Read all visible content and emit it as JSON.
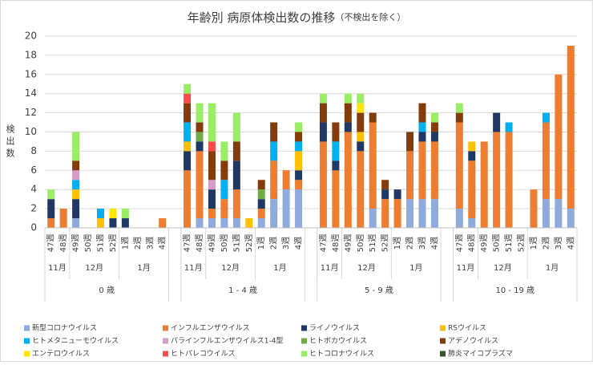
{
  "chart_data": {
    "type": "stacked_bar",
    "title": "年齢別 病原体検出数の推移",
    "subtitle": "（不検出を除く）",
    "y_label": "検出数",
    "categories": [
      "47週",
      "48週",
      "49週",
      "50週",
      "51週",
      "52週",
      "1週",
      "2週",
      "3週",
      "4週",
      null,
      "47週",
      "48週",
      "49週",
      "50週",
      "51週",
      "52週",
      "1週",
      "2週",
      "3週",
      "4週",
      null,
      "47週",
      "48週",
      "49週",
      "50週",
      "51週",
      "52週",
      "1週",
      "2週",
      "3週",
      "4週",
      null,
      "47週",
      "48週",
      "49週",
      "50週",
      "51週",
      "52週",
      "1週",
      "2週",
      "3週",
      "4週"
    ],
    "groups": [
      {
        "name": "0 歳",
        "months": [
          "11月",
          "12月",
          "1月"
        ]
      },
      {
        "name": "1 - 4 歳",
        "months": [
          "11月",
          "12月",
          "1月"
        ]
      },
      {
        "name": "5 - 9 歳",
        "months": [
          "11月",
          "12月",
          "1月"
        ]
      },
      {
        "name": "10 - 19 歳",
        "months": [
          "11月",
          "12月",
          "1月"
        ]
      }
    ],
    "ylim": [
      0,
      20
    ],
    "yticks": [
      0,
      2,
      4,
      6,
      8,
      10,
      12,
      14,
      16,
      18,
      20
    ],
    "grid": true,
    "series": [
      {
        "name": "新型コロナウイルス",
        "color": "#8faadc",
        "values": [
          0,
          0,
          1,
          0,
          0,
          0,
          0,
          0,
          0,
          0,
          null,
          0,
          1,
          1,
          1,
          1,
          0,
          1,
          3,
          4,
          4,
          null,
          0,
          0,
          0,
          0,
          2,
          0,
          0,
          3,
          3,
          3,
          null,
          2,
          1,
          0,
          0,
          0,
          0,
          0,
          3,
          3,
          2
        ]
      },
      {
        "name": "インフルエンザウイルス",
        "color": "#ed7d31",
        "values": [
          1,
          2,
          0,
          0,
          0,
          0,
          0,
          0,
          0,
          1,
          null,
          6,
          7,
          1,
          2,
          3,
          0,
          1,
          4,
          2,
          1,
          null,
          9,
          6,
          10,
          8,
          9,
          3,
          3,
          5,
          6,
          6,
          null,
          9,
          6,
          9,
          10,
          10,
          0,
          4,
          8,
          13,
          17
        ]
      },
      {
        "name": "ライノウイルス",
        "color": "#1f3864",
        "values": [
          2,
          0,
          2,
          0,
          0,
          1,
          1,
          0,
          0,
          0,
          null,
          2,
          1,
          2,
          0,
          3,
          0,
          1,
          0,
          0,
          1,
          null,
          2,
          1,
          1,
          1,
          0,
          1,
          1,
          0,
          1,
          1,
          null,
          0,
          1,
          0,
          2,
          0,
          0,
          0,
          0,
          0,
          0
        ]
      },
      {
        "name": "RSウイルス",
        "color": "#ffc000",
        "values": [
          0,
          0,
          1,
          0,
          1,
          0,
          0,
          0,
          0,
          0,
          null,
          1,
          0,
          0,
          0,
          0,
          1,
          0,
          0,
          0,
          2,
          null,
          0,
          0,
          0,
          1,
          0,
          0,
          0,
          0,
          0,
          0,
          null,
          0,
          1,
          0,
          0,
          0,
          0,
          0,
          0,
          0,
          0
        ]
      },
      {
        "name": "ヒトメタニューモウイルス",
        "color": "#00b0f0",
        "values": [
          0,
          0,
          1,
          0,
          1,
          0,
          0,
          0,
          0,
          0,
          null,
          2,
          0,
          0,
          2,
          0,
          0,
          0,
          2,
          0,
          1,
          null,
          0,
          2,
          0,
          0,
          0,
          0,
          0,
          0,
          1,
          0,
          null,
          0,
          0,
          0,
          0,
          1,
          0,
          0,
          1,
          0,
          0
        ]
      },
      {
        "name": "パラインフルエンザウイルス1-4型",
        "color": "#d59cc9",
        "values": [
          0,
          0,
          1,
          0,
          0,
          0,
          0,
          0,
          0,
          0,
          null,
          0,
          0,
          1,
          0,
          0,
          0,
          0,
          0,
          0,
          0,
          null,
          0,
          0,
          0,
          0,
          0,
          0,
          0,
          0,
          0,
          0,
          null,
          0,
          0,
          0,
          0,
          0,
          0,
          0,
          0,
          0,
          0
        ]
      },
      {
        "name": "ヒトボカウイルス",
        "color": "#70ad47",
        "values": [
          0,
          0,
          0,
          0,
          0,
          0,
          0,
          0,
          0,
          0,
          null,
          0,
          1,
          0,
          0,
          0,
          0,
          1,
          0,
          0,
          0,
          null,
          0,
          0,
          0,
          0,
          0,
          0,
          0,
          0,
          0,
          0,
          null,
          0,
          0,
          0,
          0,
          0,
          0,
          0,
          0,
          0,
          0
        ]
      },
      {
        "name": "アデノウイルス",
        "color": "#843c0c",
        "values": [
          0,
          0,
          1,
          0,
          0,
          0,
          0,
          0,
          0,
          0,
          null,
          2,
          1,
          3,
          2,
          2,
          0,
          1,
          2,
          0,
          1,
          null,
          2,
          2,
          2,
          2,
          1,
          1,
          0,
          2,
          2,
          1,
          null,
          1,
          0,
          0,
          0,
          0,
          0,
          0,
          0,
          0,
          0
        ]
      },
      {
        "name": "エンテロウイルス",
        "color": "#ffe600",
        "values": [
          0,
          0,
          0,
          0,
          0,
          1,
          0,
          0,
          0,
          0,
          null,
          0,
          0,
          0,
          0,
          0,
          0,
          0,
          0,
          0,
          0,
          null,
          0,
          0,
          0,
          1,
          0,
          0,
          0,
          0,
          0,
          0,
          null,
          0,
          0,
          0,
          0,
          0,
          0,
          0,
          0,
          0,
          0
        ]
      },
      {
        "name": "ヒトパレコウイルス",
        "color": "#ff4b4b",
        "values": [
          0,
          0,
          0,
          0,
          0,
          0,
          0,
          0,
          0,
          0,
          null,
          1,
          0,
          1,
          0,
          0,
          0,
          0,
          0,
          0,
          0,
          null,
          0,
          0,
          0,
          0,
          0,
          0,
          0,
          0,
          0,
          0,
          null,
          0,
          0,
          0,
          0,
          0,
          0,
          0,
          0,
          0,
          0
        ]
      },
      {
        "name": "ヒトコロナウイルス",
        "color": "#99ee66",
        "values": [
          1,
          0,
          3,
          0,
          0,
          0,
          1,
          0,
          0,
          0,
          null,
          1,
          2,
          4,
          2,
          3,
          0,
          0,
          0,
          0,
          1,
          null,
          1,
          0,
          1,
          1,
          0,
          0,
          0,
          0,
          0,
          1,
          null,
          1,
          0,
          0,
          0,
          0,
          0,
          0,
          0,
          0,
          0
        ]
      },
      {
        "name": "肺炎マイコプラズマ",
        "color": "#375623",
        "values": [
          0,
          0,
          0,
          0,
          0,
          0,
          0,
          0,
          0,
          0,
          null,
          0,
          0,
          0,
          0,
          0,
          0,
          0,
          0,
          0,
          0,
          null,
          0,
          0,
          0,
          0,
          0,
          0,
          0,
          0,
          0,
          0,
          null,
          0,
          0,
          0,
          0,
          0,
          0,
          0,
          0,
          0,
          0
        ]
      }
    ]
  }
}
